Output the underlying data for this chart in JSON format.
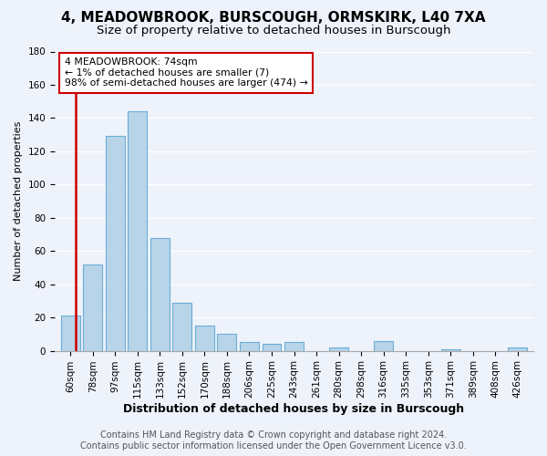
{
  "title": "4, MEADOWBROOK, BURSCOUGH, ORMSKIRK, L40 7XA",
  "subtitle": "Size of property relative to detached houses in Burscough",
  "xlabel": "Distribution of detached houses by size in Burscough",
  "ylabel": "Number of detached properties",
  "bar_values": [
    21,
    52,
    129,
    144,
    68,
    29,
    15,
    10,
    5,
    4,
    5,
    0,
    2,
    0,
    6,
    0,
    0,
    1,
    0,
    0,
    2
  ],
  "bar_labels": [
    "60sqm",
    "78sqm",
    "97sqm",
    "115sqm",
    "133sqm",
    "152sqm",
    "170sqm",
    "188sqm",
    "206sqm",
    "225sqm",
    "243sqm",
    "261sqm",
    "280sqm",
    "298sqm",
    "316sqm",
    "335sqm",
    "353sqm",
    "371sqm",
    "389sqm",
    "408sqm",
    "426sqm"
  ],
  "bar_color": "#b8d4e8",
  "bar_edge_color": "#6aaed6",
  "highlight_line_color": "#cc0000",
  "ylim": [
    0,
    180
  ],
  "yticks": [
    0,
    20,
    40,
    60,
    80,
    100,
    120,
    140,
    160,
    180
  ],
  "annotation_text": "4 MEADOWBROOK: 74sqm\n← 1% of detached houses are smaller (7)\n98% of semi-detached houses are larger (474) →",
  "annotation_box_color": "#ffffff",
  "annotation_box_edge": "#cc0000",
  "footer_line1": "Contains HM Land Registry data © Crown copyright and database right 2024.",
  "footer_line2": "Contains public sector information licensed under the Open Government Licence v3.0.",
  "background_color": "#eef2fb",
  "grid_color": "#ffffff",
  "title_fontsize": 11,
  "subtitle_fontsize": 9.5,
  "xlabel_fontsize": 9,
  "ylabel_fontsize": 8,
  "tick_fontsize": 7.5,
  "footer_fontsize": 7
}
